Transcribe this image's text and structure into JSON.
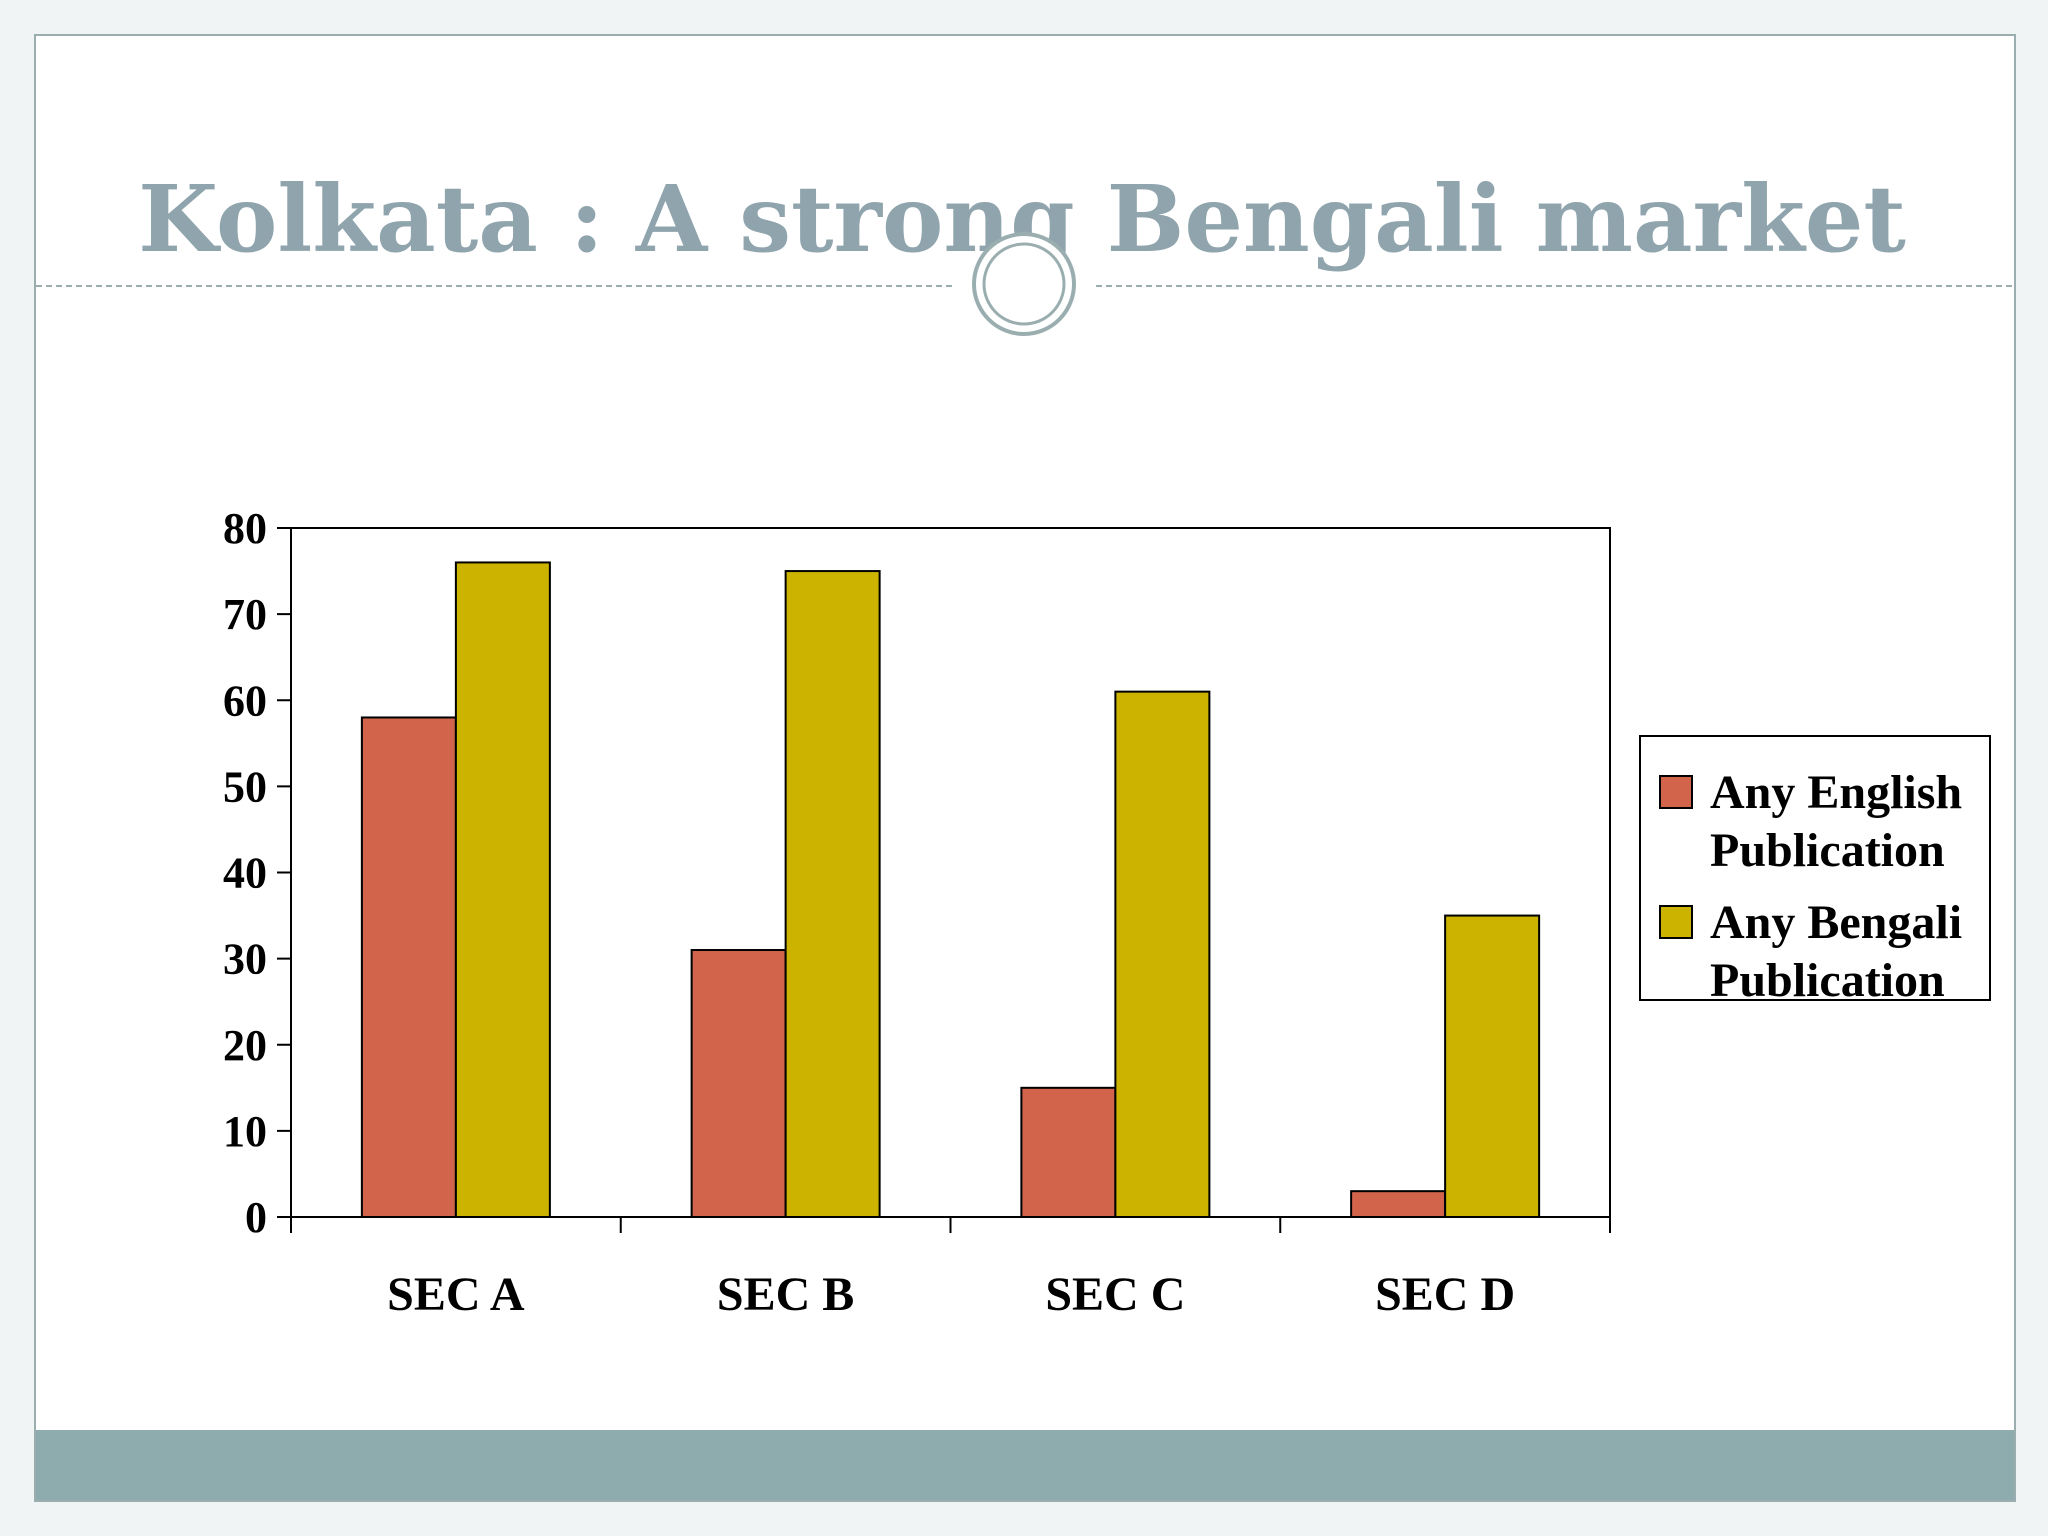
{
  "slide": {
    "title": "Kolkata : A strong Bengali market"
  },
  "chart_data": {
    "type": "bar",
    "title": "",
    "xlabel": "",
    "ylabel": "",
    "categories": [
      "SEC A",
      "SEC B",
      "SEC C",
      "SEC D"
    ],
    "series": [
      {
        "name": "Any English Publication",
        "name_lines": [
          "Any English",
          "Publication"
        ],
        "color": "#d2644c",
        "values": [
          58,
          31,
          15,
          3
        ]
      },
      {
        "name": "Any Bengali Publication",
        "name_lines": [
          "Any Bengali",
          "Publication"
        ],
        "color": "#cbb300",
        "values": [
          76,
          75,
          61,
          35
        ]
      }
    ],
    "ylim": [
      0,
      80
    ],
    "yticks": [
      0,
      10,
      20,
      30,
      40,
      50,
      60,
      70,
      80
    ],
    "grid": false,
    "legend": "right"
  },
  "colors": {
    "title": "#8fa4ad",
    "divider": "#9aaeb0",
    "footer": "#8eabae"
  }
}
